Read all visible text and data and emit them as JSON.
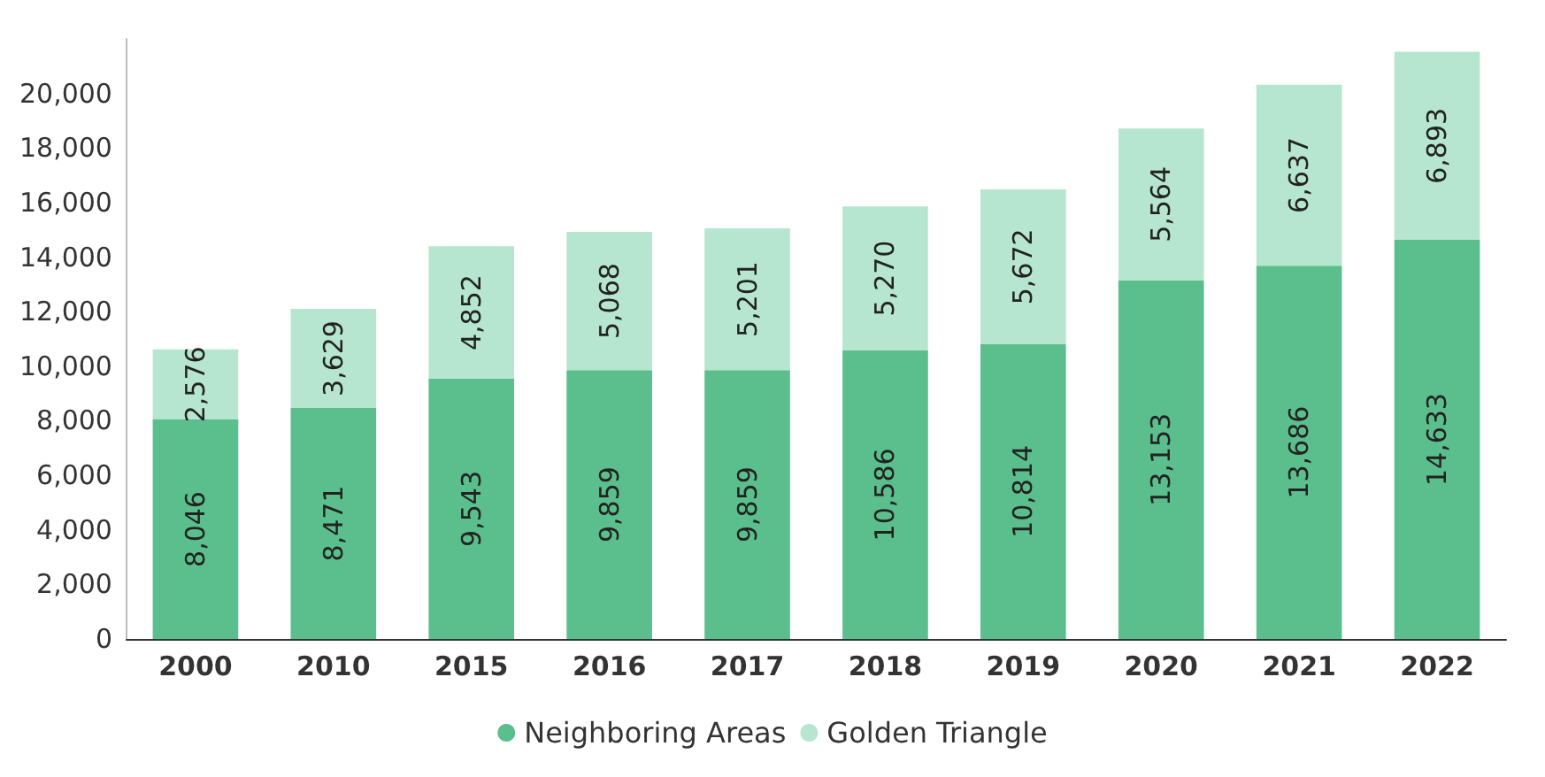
{
  "chart_data": {
    "type": "bar",
    "stacked": true,
    "categories": [
      "2000",
      "2010",
      "2015",
      "2016",
      "2017",
      "2018",
      "2019",
      "2020",
      "2021",
      "2022"
    ],
    "series": [
      {
        "name": "Neighboring Areas",
        "color": "#5bbf8d",
        "values": [
          8046,
          8471,
          9543,
          9859,
          9859,
          10586,
          10814,
          13153,
          13686,
          14633
        ],
        "value_labels": [
          "8,046",
          "8,471",
          "9,543",
          "9,859",
          "9,859",
          "10,586",
          "10,814",
          "13,153",
          "13,686",
          "14,633"
        ]
      },
      {
        "name": "Golden Triangle",
        "color": "#b6e6cf",
        "values": [
          2576,
          3629,
          4852,
          5068,
          5201,
          5270,
          5672,
          5564,
          6637,
          6893
        ],
        "value_labels": [
          "2,576",
          "3,629",
          "4,852",
          "5,068",
          "5,201",
          "5,270",
          "5,672",
          "5,564",
          "6,637",
          "6,893"
        ]
      }
    ],
    "ylim": [
      0,
      22000
    ],
    "yticks": [
      0,
      {
        "value": 2000,
        "label": "2,000"
      },
      {
        "value": 4000,
        "label": "4,000"
      },
      {
        "value": 6000,
        "label": "6,000"
      },
      {
        "value": 8000,
        "label": "8,000"
      },
      {
        "value": 10000,
        "label": "10,000"
      },
      {
        "value": 12000,
        "label": "12,000"
      },
      {
        "value": 14000,
        "label": "14,000"
      },
      {
        "value": 16000,
        "label": "16,000"
      },
      {
        "value": 18000,
        "label": "18,000"
      },
      {
        "value": 20000,
        "label": "20,000"
      }
    ],
    "grid": false,
    "legend": "bottom"
  }
}
